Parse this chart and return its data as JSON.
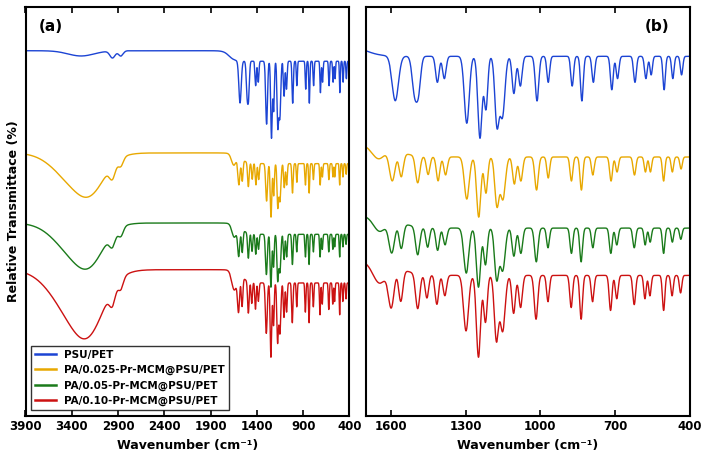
{
  "title_a": "(a)",
  "title_b": "(b)",
  "ylabel": "Relative Transmittace (%)",
  "xlabel": "Wavenumber (cm⁻¹)",
  "xlabel_b": "Wavenumber (cm⁻¹)",
  "xticks_a": [
    3900,
    3400,
    2900,
    2400,
    1900,
    1400,
    900,
    400
  ],
  "xticks_b": [
    1600,
    1300,
    1000,
    700,
    400
  ],
  "colors": [
    "#1c44d4",
    "#e8a800",
    "#1a7a1a",
    "#cc1111"
  ],
  "labels": [
    "PSU/PET",
    "PA/0.025-Pr-MCM@PSU/PET",
    "PA/0.05-Pr-MCM@PSU/PET",
    "PA/0.10-Pr-MCM@PSU/PET"
  ],
  "offsets_a": [
    75,
    48,
    24,
    0
  ],
  "offsets_b": [
    75,
    48,
    24,
    0
  ],
  "background_color": "#ffffff",
  "linewidth": 1.0
}
